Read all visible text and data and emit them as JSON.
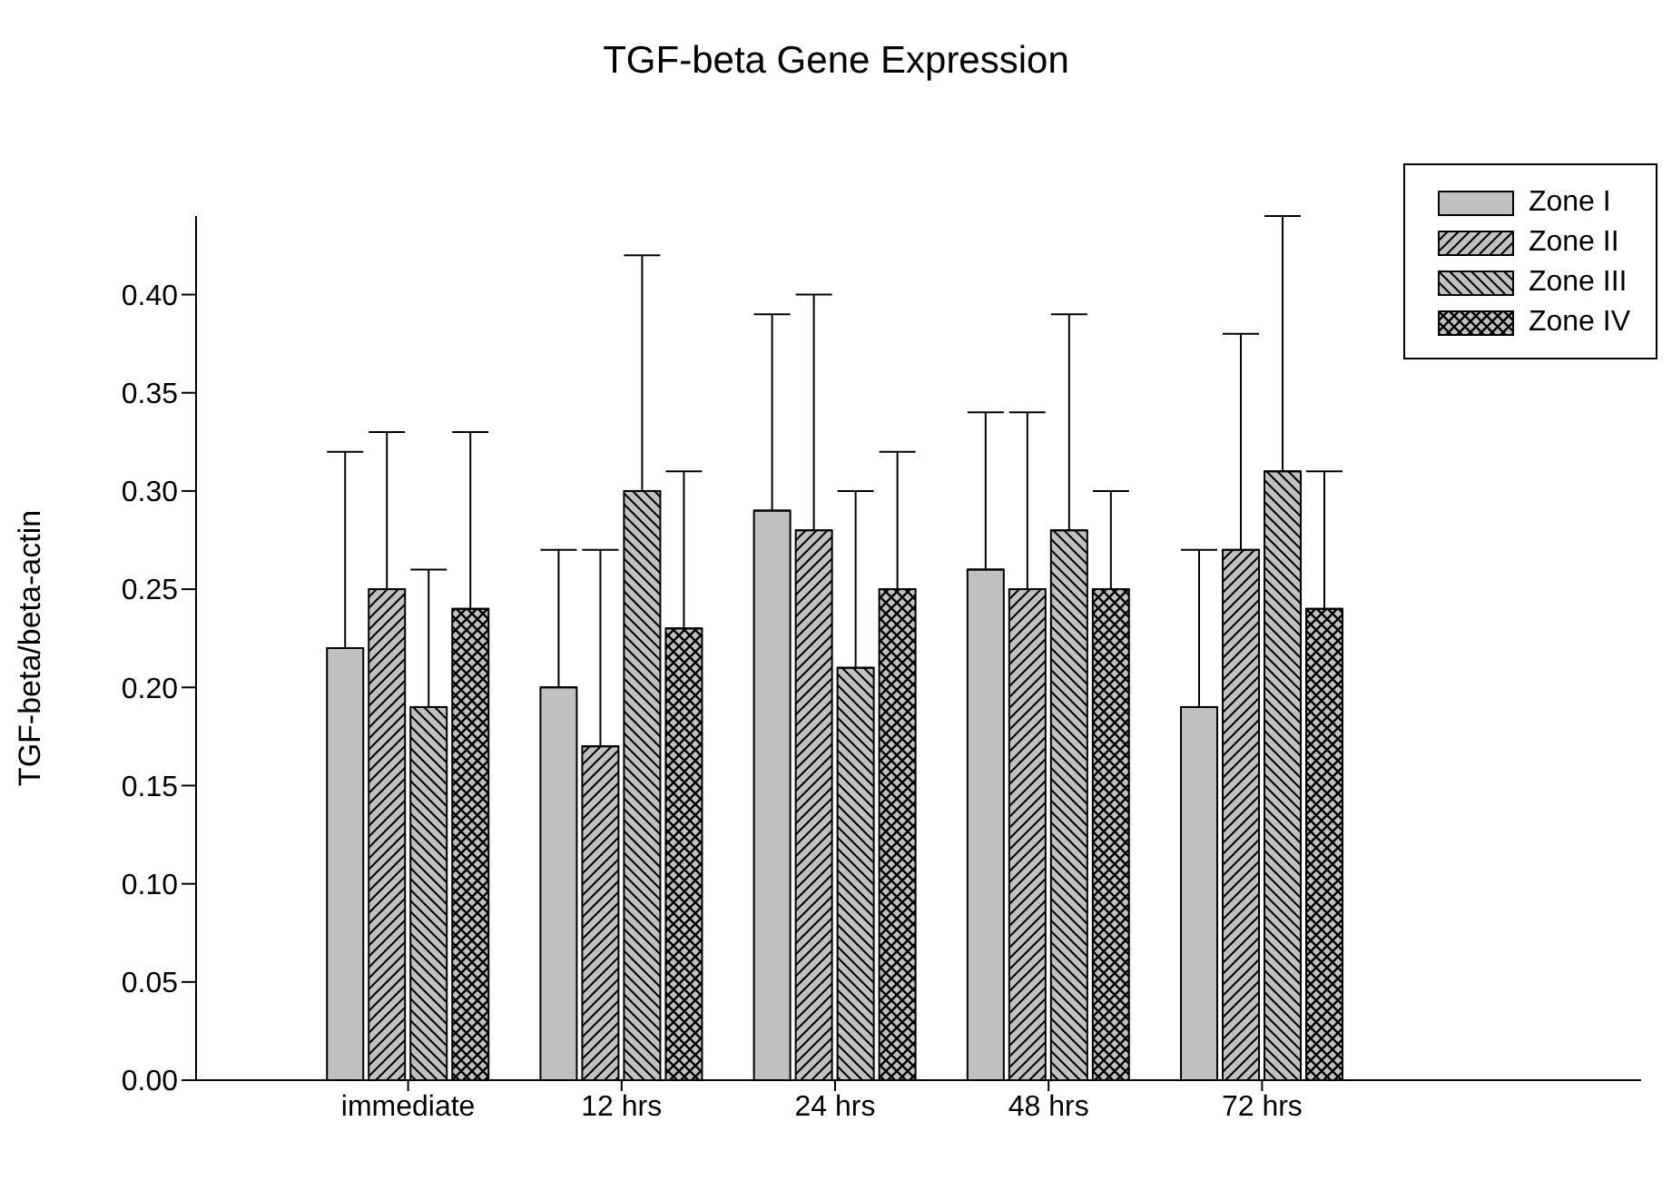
{
  "chart_data": {
    "type": "bar",
    "title": "TGF-beta Gene Expression",
    "ylabel": "TGF-beta/beta-actin",
    "categories": [
      "immediate",
      "12 hrs",
      "24 hrs",
      "48 hrs",
      "72 hrs"
    ],
    "series": [
      {
        "name": "Zone I",
        "color": "#c0c0c0",
        "values": [
          0.22,
          0.2,
          0.29,
          0.26,
          0.19
        ],
        "errors": [
          [
            0.22,
            0.32
          ],
          [
            0.2,
            0.27
          ],
          [
            0.29,
            0.39
          ],
          [
            0.26,
            0.34
          ],
          [
            0.19,
            0.27
          ]
        ]
      },
      {
        "name": "Zone II",
        "color": "#c0c0c0",
        "values": [
          0.25,
          0.17,
          0.28,
          0.25,
          0.27
        ],
        "errors": [
          [
            0.25,
            0.33
          ],
          [
            0.17,
            0.27
          ],
          [
            0.28,
            0.4
          ],
          [
            0.25,
            0.34
          ],
          [
            0.27,
            0.38
          ]
        ]
      },
      {
        "name": "Zone III",
        "color": "#c0c0c0",
        "values": [
          0.19,
          0.3,
          0.21,
          0.28,
          0.31
        ],
        "errors": [
          [
            0.19,
            0.26
          ],
          [
            0.3,
            0.42
          ],
          [
            0.21,
            0.3
          ],
          [
            0.28,
            0.39
          ],
          [
            0.31,
            0.44
          ]
        ]
      },
      {
        "name": "Zone IV",
        "color": "#c0c0c0",
        "values": [
          0.24,
          0.23,
          0.25,
          0.25,
          0.24
        ],
        "errors": [
          [
            0.24,
            0.33
          ],
          [
            0.23,
            0.31
          ],
          [
            0.25,
            0.32
          ],
          [
            0.25,
            0.3
          ],
          [
            0.24,
            0.31
          ]
        ]
      }
    ],
    "ylim": [
      0,
      0.44
    ],
    "yticks": [
      {
        "value": 0,
        "label": "0.00"
      },
      0.05,
      {
        "value": 0.1,
        "label": "0.10"
      },
      0.15,
      {
        "value": 0.2,
        "label": "0.20"
      },
      0.25,
      {
        "value": 0.3,
        "label": "0.30"
      },
      0.35,
      {
        "value": 0.4,
        "label": "0.40"
      }
    ],
    "grid": false,
    "legend": "top right"
  }
}
